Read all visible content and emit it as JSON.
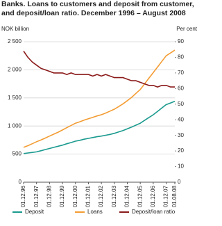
{
  "chart_data": {
    "type": "line",
    "title": "Banks. Loans to customers and deposit from customer, and deposit/loan ratio. December 1996 – August 2008",
    "y_label": "NOK billion",
    "y2_label": "Per cent",
    "categories": [
      "01.12.96",
      null,
      null,
      "01.12.97",
      null,
      null,
      "01.12.98",
      null,
      null,
      "01.12.99",
      null,
      null,
      "01.12.00",
      null,
      null,
      "01.12.01",
      null,
      null,
      "01.12.02",
      null,
      null,
      "01.12.03",
      null,
      null,
      "01.12.04",
      null,
      null,
      "01.12.05",
      null,
      null,
      "01.12.06",
      null,
      null,
      "01.12.07",
      null,
      "01.08.08"
    ],
    "series": [
      {
        "name": "Deposit",
        "color": "#1a9a8e",
        "values": [
          510,
          520,
          530,
          540,
          560,
          580,
          600,
          620,
          640,
          660,
          685,
          705,
          730,
          745,
          765,
          780,
          795,
          810,
          820,
          835,
          850,
          870,
          895,
          920,
          950,
          980,
          1015,
          1050,
          1100,
          1150,
          1200,
          1260,
          1320,
          1380,
          1410,
          1440
        ]
      },
      {
        "name": "Loans",
        "color": "#f39c33",
        "values": [
          620,
          650,
          685,
          720,
          750,
          785,
          820,
          855,
          890,
          930,
          970,
          1010,
          1050,
          1075,
          1105,
          1130,
          1155,
          1180,
          1200,
          1230,
          1265,
          1300,
          1345,
          1395,
          1450,
          1510,
          1580,
          1650,
          1750,
          1850,
          1950,
          2050,
          2150,
          2250,
          2300,
          2350
        ]
      },
      {
        "name": "Deposit/loan ratio",
        "color": "#8b1a1a",
        "axis": "y2",
        "values": [
          84,
          80,
          77,
          75,
          73,
          72,
          71,
          70,
          70,
          70,
          69,
          70,
          69,
          69,
          69,
          69,
          68,
          69,
          68,
          69,
          68,
          67,
          67,
          67,
          66,
          65,
          65,
          64,
          63,
          62,
          62,
          61,
          62,
          62,
          61,
          61
        ]
      }
    ],
    "ylim": [
      0,
      2500
    ],
    "yticks": [
      0,
      500,
      {
        "value": 1000,
        "label": "1 000"
      },
      {
        "value": 1500,
        "label": "1 500"
      },
      {
        "value": 2000,
        "label": "2 000"
      },
      {
        "value": 2500,
        "label": "2 500"
      }
    ],
    "y2lim": [
      0,
      90
    ],
    "y2ticks": [
      0,
      10,
      20,
      30,
      40,
      50,
      60,
      70,
      80,
      90
    ],
    "grid": true
  }
}
